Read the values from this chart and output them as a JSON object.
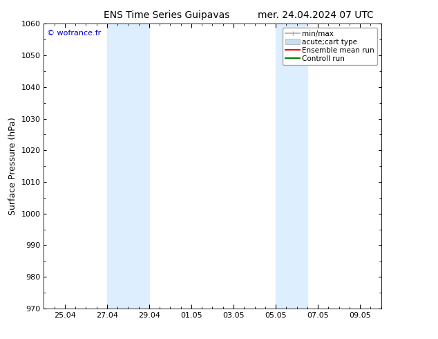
{
  "title_left": "ENS Time Series Guipavas",
  "title_right": "mer. 24.04.2024 07 UTC",
  "ylabel": "Surface Pressure (hPa)",
  "ylim": [
    970,
    1060
  ],
  "yticks": [
    970,
    980,
    990,
    1000,
    1010,
    1020,
    1030,
    1040,
    1050,
    1060
  ],
  "x_start_date": "2024-04-24",
  "xtick_labels": [
    "25.04",
    "27.04",
    "29.04",
    "01.05",
    "03.05",
    "05.05",
    "07.05",
    "09.05"
  ],
  "xtick_positions": [
    1,
    3,
    5,
    7,
    9,
    11,
    13,
    15
  ],
  "xlim": [
    0,
    16
  ],
  "shaded_bands": [
    {
      "xmin": 3,
      "xmax": 5
    },
    {
      "xmin": 11,
      "xmax": 12.5
    }
  ],
  "shaded_color": "#ddeeff",
  "background_color": "#ffffff",
  "watermark": "© wofrance.fr",
  "watermark_color": "#0000cc",
  "legend_entries": [
    {
      "label": "min/max",
      "color": "#aaaaaa",
      "style": "errbar"
    },
    {
      "label": "acute;cart type",
      "color": "#c8dff0",
      "style": "bar"
    },
    {
      "label": "Ensemble mean run",
      "color": "#ff0000",
      "style": "line"
    },
    {
      "label": "Controll run",
      "color": "#008000",
      "style": "line"
    }
  ],
  "title_fontsize": 10,
  "label_fontsize": 9,
  "tick_fontsize": 8,
  "legend_fontsize": 7.5
}
